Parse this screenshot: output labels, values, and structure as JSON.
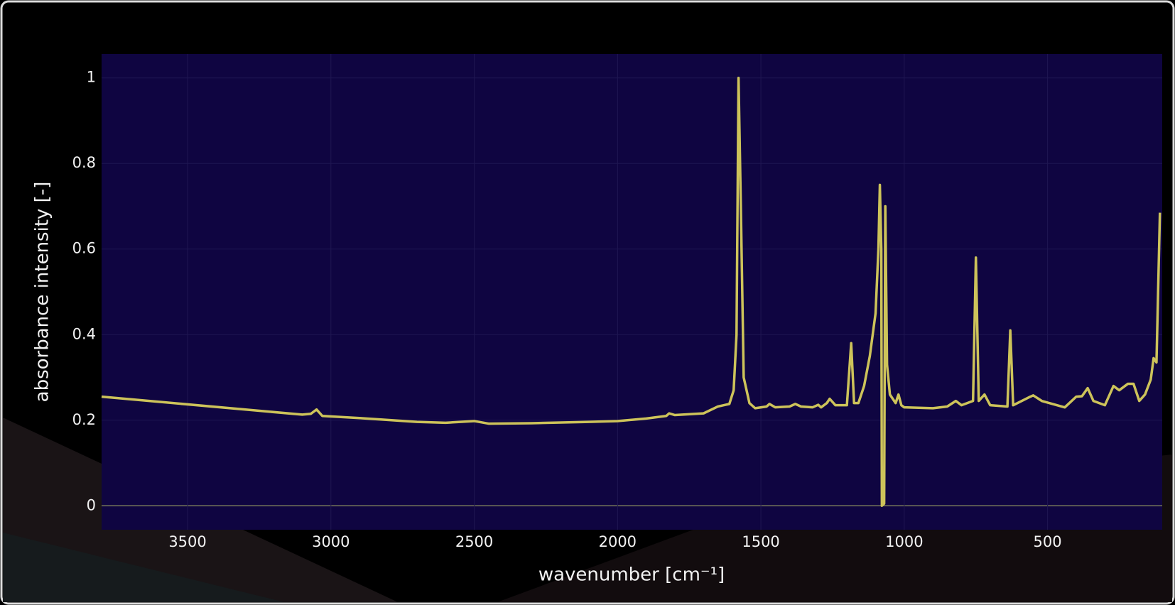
{
  "chart_data": {
    "type": "line",
    "xlabel": "wavenumber [cm⁻¹]",
    "ylabel": "absorbance intensity [-]",
    "x": [
      3800,
      3100,
      3070,
      3050,
      3030,
      2900,
      2700,
      2600,
      2500,
      2450,
      2300,
      2100,
      2000,
      1900,
      1830,
      1820,
      1800,
      1700,
      1650,
      1610,
      1595,
      1585,
      1578,
      1570,
      1560,
      1540,
      1520,
      1480,
      1470,
      1450,
      1400,
      1380,
      1360,
      1320,
      1300,
      1290,
      1270,
      1260,
      1240,
      1200,
      1185,
      1175,
      1160,
      1140,
      1120,
      1100,
      1090,
      1085,
      1080,
      1078,
      1070,
      1066,
      1060,
      1050,
      1030,
      1020,
      1010,
      1000,
      900,
      850,
      820,
      800,
      760,
      750,
      740,
      720,
      700,
      640,
      630,
      620,
      560,
      550,
      520,
      440,
      400,
      380,
      360,
      340,
      300,
      270,
      250,
      220,
      200,
      180,
      160,
      140,
      130,
      120,
      108
    ],
    "values": [
      0.255,
      0.213,
      0.215,
      0.225,
      0.21,
      0.205,
      0.196,
      0.194,
      0.198,
      0.192,
      0.193,
      0.196,
      0.198,
      0.204,
      0.21,
      0.216,
      0.212,
      0.216,
      0.232,
      0.238,
      0.27,
      0.4,
      1.0,
      0.7,
      0.3,
      0.24,
      0.228,
      0.232,
      0.238,
      0.23,
      0.232,
      0.238,
      0.232,
      0.23,
      0.236,
      0.23,
      0.24,
      0.25,
      0.235,
      0.235,
      0.38,
      0.24,
      0.24,
      0.28,
      0.35,
      0.45,
      0.6,
      0.75,
      0.6,
      0,
      0.005,
      0.7,
      0.33,
      0.26,
      0.24,
      0.26,
      0.235,
      0.23,
      0.228,
      0.232,
      0.245,
      0.235,
      0.245,
      0.58,
      0.245,
      0.26,
      0.235,
      0.232,
      0.41,
      0.235,
      0.255,
      0.258,
      0.245,
      0.23,
      0.255,
      0.256,
      0.275,
      0.245,
      0.235,
      0.28,
      0.27,
      0.285,
      0.285,
      0.245,
      0.26,
      0.295,
      0.345,
      0.335,
      0.685
    ],
    "color": "#cdc35a",
    "xlim": [
      3800,
      100
    ],
    "ylim": [
      -0.056,
      1.056
    ],
    "xticks": [
      3500,
      3000,
      2500,
      2000,
      1500,
      1000,
      500
    ],
    "yticks": [
      0,
      0.2,
      0.4,
      0.6,
      0.8,
      1
    ],
    "grid": true
  }
}
